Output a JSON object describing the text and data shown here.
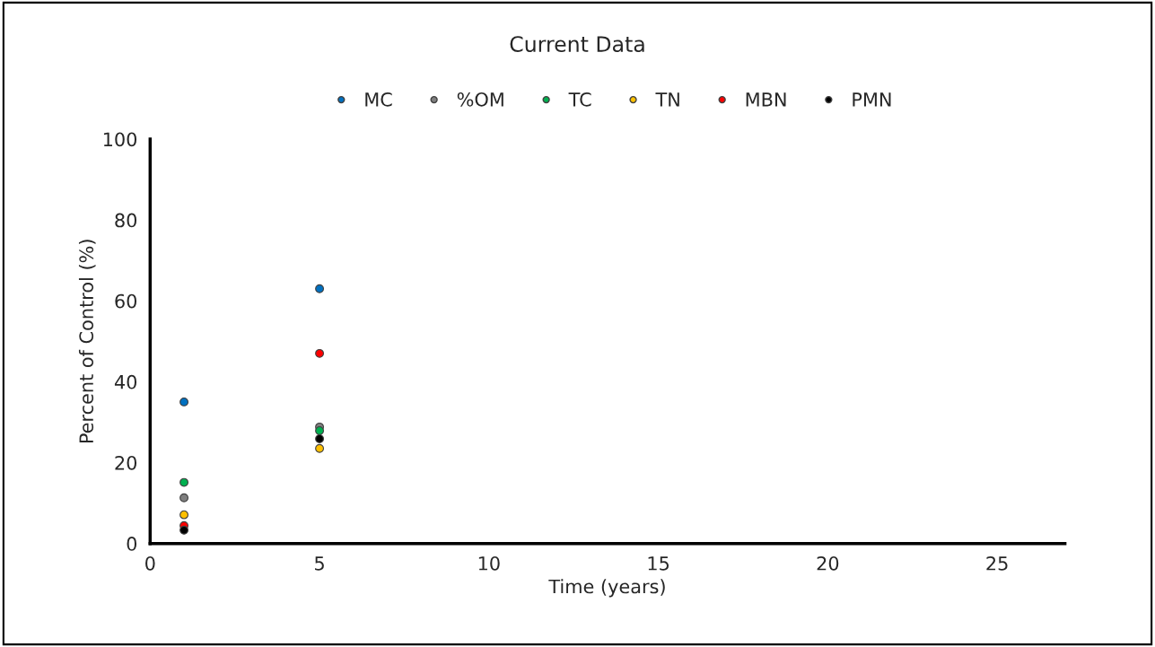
{
  "chart_data": {
    "type": "scatter",
    "title": "Current Data",
    "xlabel": "Time (years)",
    "ylabel": "Percent of Control (%)",
    "x": [
      1,
      5
    ],
    "series": [
      {
        "name": "MC",
        "color": "#0070c0",
        "values": [
          35,
          63
        ]
      },
      {
        "name": "%OM",
        "color": "#7f7f7f",
        "values": [
          11.3,
          28.8
        ]
      },
      {
        "name": "TC",
        "color": "#00b050",
        "values": [
          15.1,
          27.9
        ]
      },
      {
        "name": "TN",
        "color": "#ffc000",
        "values": [
          7.1,
          23.5
        ]
      },
      {
        "name": "MBN",
        "color": "#ff0000",
        "values": [
          4.4,
          47
        ]
      },
      {
        "name": "PMN",
        "color": "#000000",
        "values": [
          3.3,
          25.9
        ]
      }
    ],
    "xlim": [
      0,
      27
    ],
    "xticks": [
      0,
      5,
      10,
      15,
      20,
      25
    ],
    "ylim": [
      0,
      100
    ],
    "yticks": [
      0,
      20,
      40,
      60,
      80,
      100
    ],
    "grid": false,
    "legend": "top",
    "marker": "circle"
  }
}
